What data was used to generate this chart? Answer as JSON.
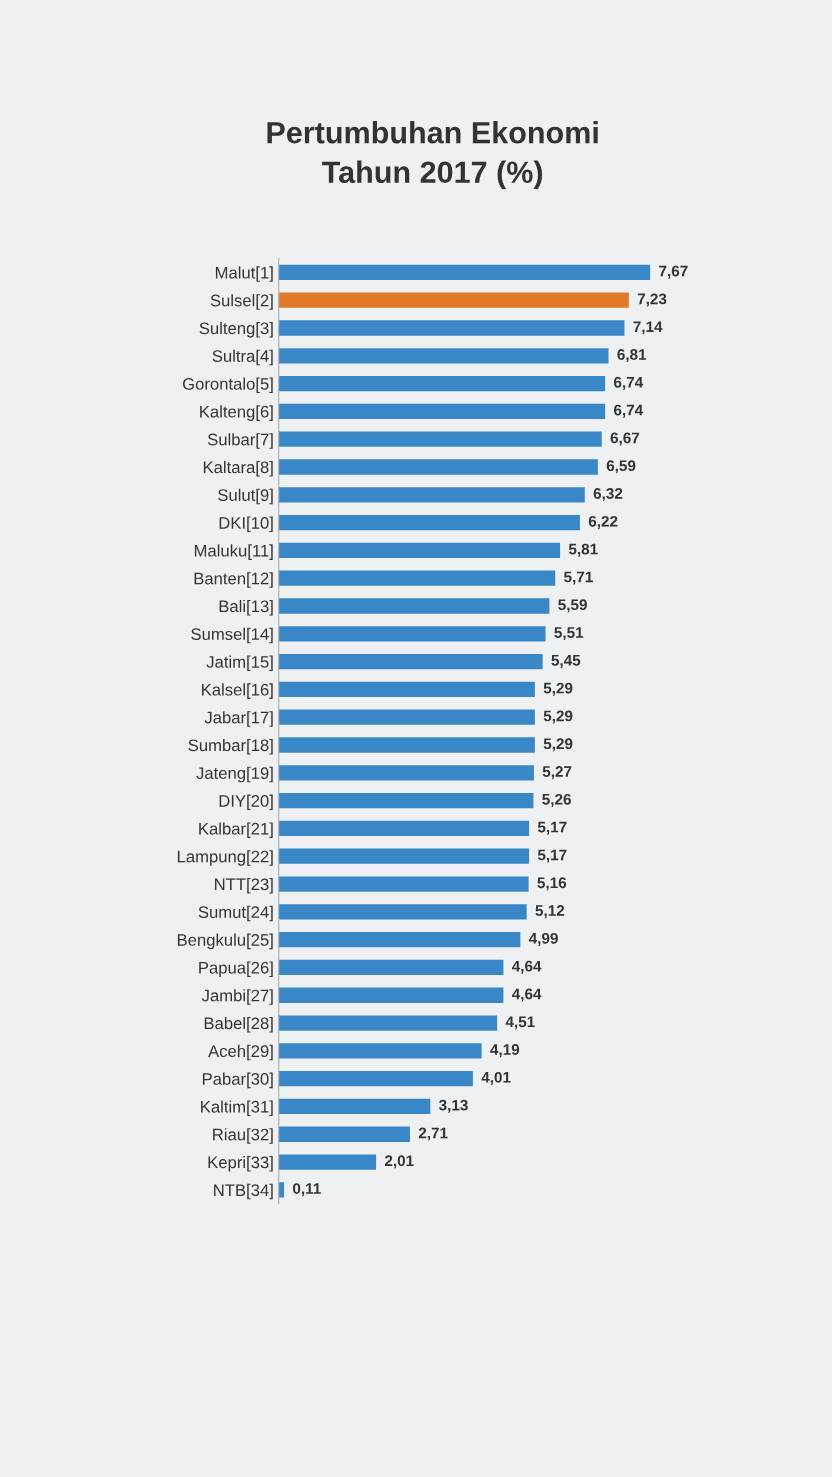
{
  "chart_data": {
    "type": "bar",
    "orientation": "horizontal",
    "title": "Pertumbuhan Ekonomi\nTahun 2017 (%)",
    "categories": [
      "Malut[1]",
      "Sulsel[2]",
      "Sulteng[3]",
      "Sultra[4]",
      "Gorontalo[5]",
      "Kalteng[6]",
      "Sulbar[7]",
      "Kaltara[8]",
      "Sulut[9]",
      "DKI[10]",
      "Maluku[11]",
      "Banten[12]",
      "Bali[13]",
      "Sumsel[14]",
      "Jatim[15]",
      "Kalsel[16]",
      "Jabar[17]",
      "Sumbar[18]",
      "Jateng[19]",
      "DIY[20]",
      "Kalbar[21]",
      "Lampung[22]",
      "NTT[23]",
      "Sumut[24]",
      "Bengkulu[25]",
      "Papua[26]",
      "Jambi[27]",
      "Babel[28]",
      "Aceh[29]",
      "Pabar[30]",
      "Kaltim[31]",
      "Riau[32]",
      "Kepri[33]",
      "NTB[34]"
    ],
    "values": [
      7.67,
      7.23,
      7.14,
      6.81,
      6.74,
      6.74,
      6.67,
      6.59,
      6.32,
      6.22,
      5.81,
      5.71,
      5.59,
      5.51,
      5.45,
      5.29,
      5.29,
      5.29,
      5.27,
      5.26,
      5.17,
      5.17,
      5.16,
      5.12,
      4.99,
      4.64,
      4.64,
      4.51,
      4.19,
      4.01,
      3.13,
      2.71,
      2.01,
      0.11
    ],
    "value_labels": [
      "7,67",
      "7,23",
      "7,14",
      "6,81",
      "6,74",
      "6,74",
      "6,67",
      "6,59",
      "6,32",
      "6,22",
      "5,81",
      "5,71",
      "5,59",
      "5,51",
      "5,45",
      "5,29",
      "5,29",
      "5,29",
      "5,27",
      "5,26",
      "5,17",
      "5,17",
      "5,16",
      "5,12",
      "4,99",
      "4,64",
      "4,64",
      "4,51",
      "4,19",
      "4,01",
      "3,13",
      "2,71",
      "2,01",
      "0,11"
    ],
    "colors": [
      "#3a87c8",
      "#e07a2a",
      "#3a87c8",
      "#3a87c8",
      "#3a87c8",
      "#3a87c8",
      "#3a87c8",
      "#3a87c8",
      "#3a87c8",
      "#3a87c8",
      "#3a87c8",
      "#3a87c8",
      "#3a87c8",
      "#3a87c8",
      "#3a87c8",
      "#3a87c8",
      "#3a87c8",
      "#3a87c8",
      "#3a87c8",
      "#3a87c8",
      "#3a87c8",
      "#3a87c8",
      "#3a87c8",
      "#3a87c8",
      "#3a87c8",
      "#3a87c8",
      "#3a87c8",
      "#3a87c8",
      "#3a87c8",
      "#3a87c8",
      "#3a87c8",
      "#3a87c8",
      "#3a87c8",
      "#3a87c8"
    ],
    "grid": false,
    "legend": false
  }
}
